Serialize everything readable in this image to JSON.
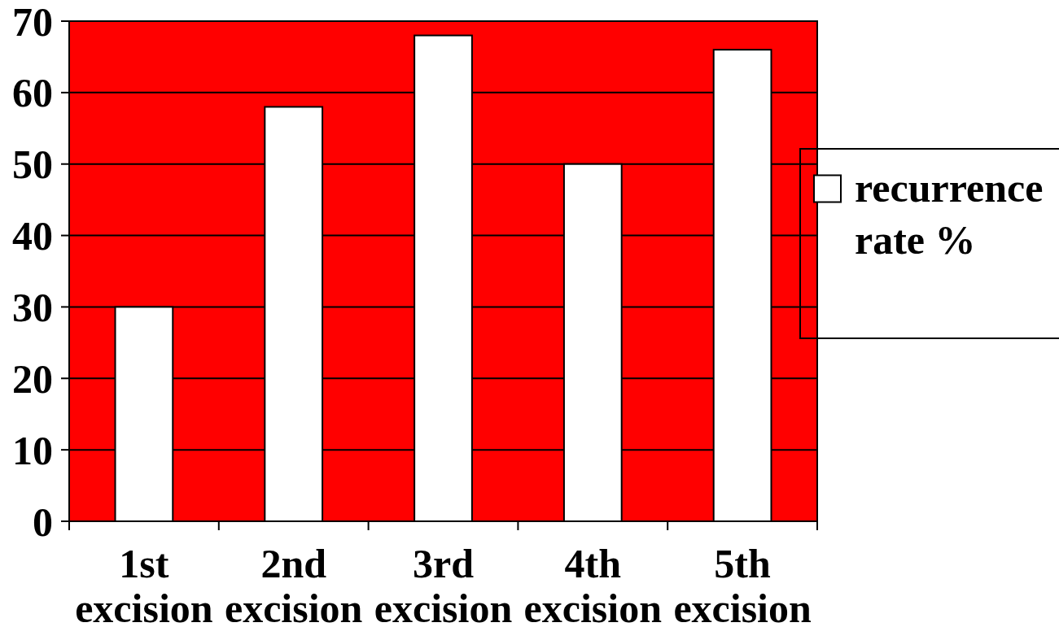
{
  "chart_data": {
    "type": "bar",
    "categories": [
      "1st excision",
      "2nd excision",
      "3rd excision",
      "4th excision",
      "5th excision"
    ],
    "series": [
      {
        "name": "recurrence rate %",
        "color": "#ffffff",
        "values": [
          30,
          58,
          68,
          50,
          66
        ]
      }
    ],
    "ylim": [
      0,
      70
    ],
    "yticks": [
      0,
      10,
      20,
      30,
      40,
      50,
      60,
      70
    ],
    "grid": "y",
    "legend": "right"
  }
}
